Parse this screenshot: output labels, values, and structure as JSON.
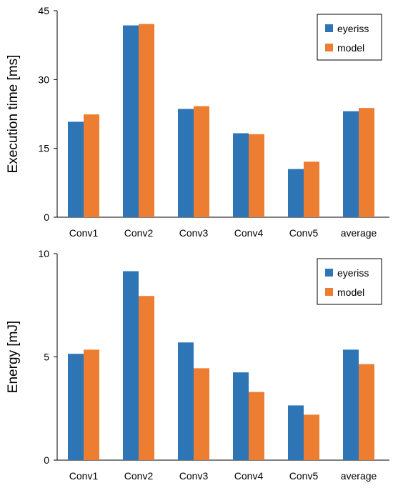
{
  "chart_data": [
    {
      "type": "bar",
      "title": "",
      "xlabel": "",
      "ylabel": "Execution time [ms]",
      "ylim": [
        0,
        45
      ],
      "yticks": [
        0,
        15,
        30,
        45
      ],
      "categories": [
        "Conv1",
        "Conv2",
        "Conv3",
        "Conv4",
        "Conv5",
        "average"
      ],
      "series": [
        {
          "name": "eyeriss",
          "color": "#2E75B6",
          "values": [
            20.8,
            41.8,
            23.6,
            18.3,
            10.5,
            23.1
          ]
        },
        {
          "name": "model",
          "color": "#ED7D31",
          "values": [
            22.4,
            42.1,
            24.2,
            18.1,
            12.1,
            23.8
          ]
        }
      ],
      "legend": {
        "position": "top-right"
      },
      "grid": false
    },
    {
      "type": "bar",
      "title": "",
      "xlabel": "",
      "ylabel": "Energy [mJ]",
      "ylim": [
        0,
        10
      ],
      "yticks": [
        0,
        5,
        10
      ],
      "categories": [
        "Conv1",
        "Conv2",
        "Conv3",
        "Conv4",
        "Conv5",
        "average"
      ],
      "series": [
        {
          "name": "eyeriss",
          "color": "#2E75B6",
          "values": [
            5.15,
            9.15,
            5.7,
            4.25,
            2.65,
            5.35
          ]
        },
        {
          "name": "model",
          "color": "#ED7D31",
          "values": [
            5.35,
            7.95,
            4.45,
            3.3,
            2.2,
            4.65
          ]
        }
      ],
      "legend": {
        "position": "top-right"
      },
      "grid": false
    }
  ]
}
